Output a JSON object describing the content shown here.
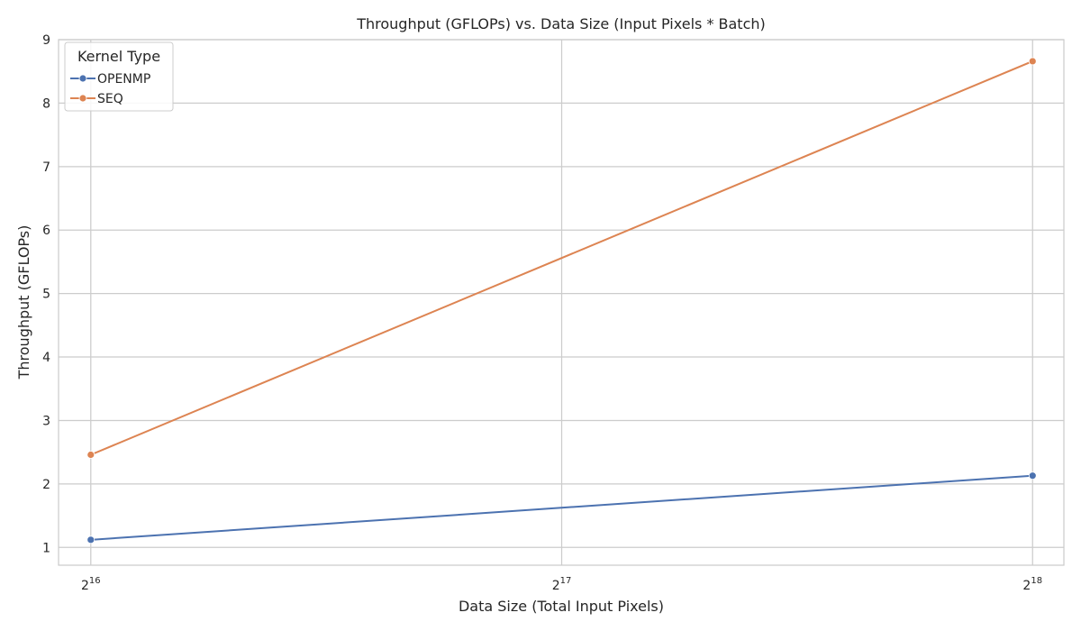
{
  "chart_data": {
    "type": "line",
    "title": "Throughput (GFLOPs) vs. Data Size (Input Pixels * Batch)",
    "xlabel": "Data Size (Total Input Pixels)",
    "ylabel": "Throughput (GFLOPs)",
    "xscale": "log2",
    "x_ticks": [
      {
        "value": 65536,
        "base": "2",
        "exp": "16"
      },
      {
        "value": 131072,
        "base": "2",
        "exp": "17"
      },
      {
        "value": 262144,
        "base": "2",
        "exp": "18"
      }
    ],
    "xlim": [
      62500,
      274500
    ],
    "ylim": [
      0.72,
      9.0
    ],
    "y_ticks": [
      "1",
      "2",
      "3",
      "4",
      "5",
      "6",
      "7",
      "8",
      "9"
    ],
    "grid": true,
    "legend": {
      "title": "Kernel Type",
      "placement": "top-left"
    },
    "series": [
      {
        "name": "OPENMP",
        "color": "#4c72b0",
        "x": [
          65536,
          262144
        ],
        "y": [
          1.12,
          2.13
        ]
      },
      {
        "name": "SEQ",
        "color": "#dd8452",
        "x": [
          65536,
          262144
        ],
        "y": [
          2.46,
          8.66
        ]
      }
    ]
  }
}
